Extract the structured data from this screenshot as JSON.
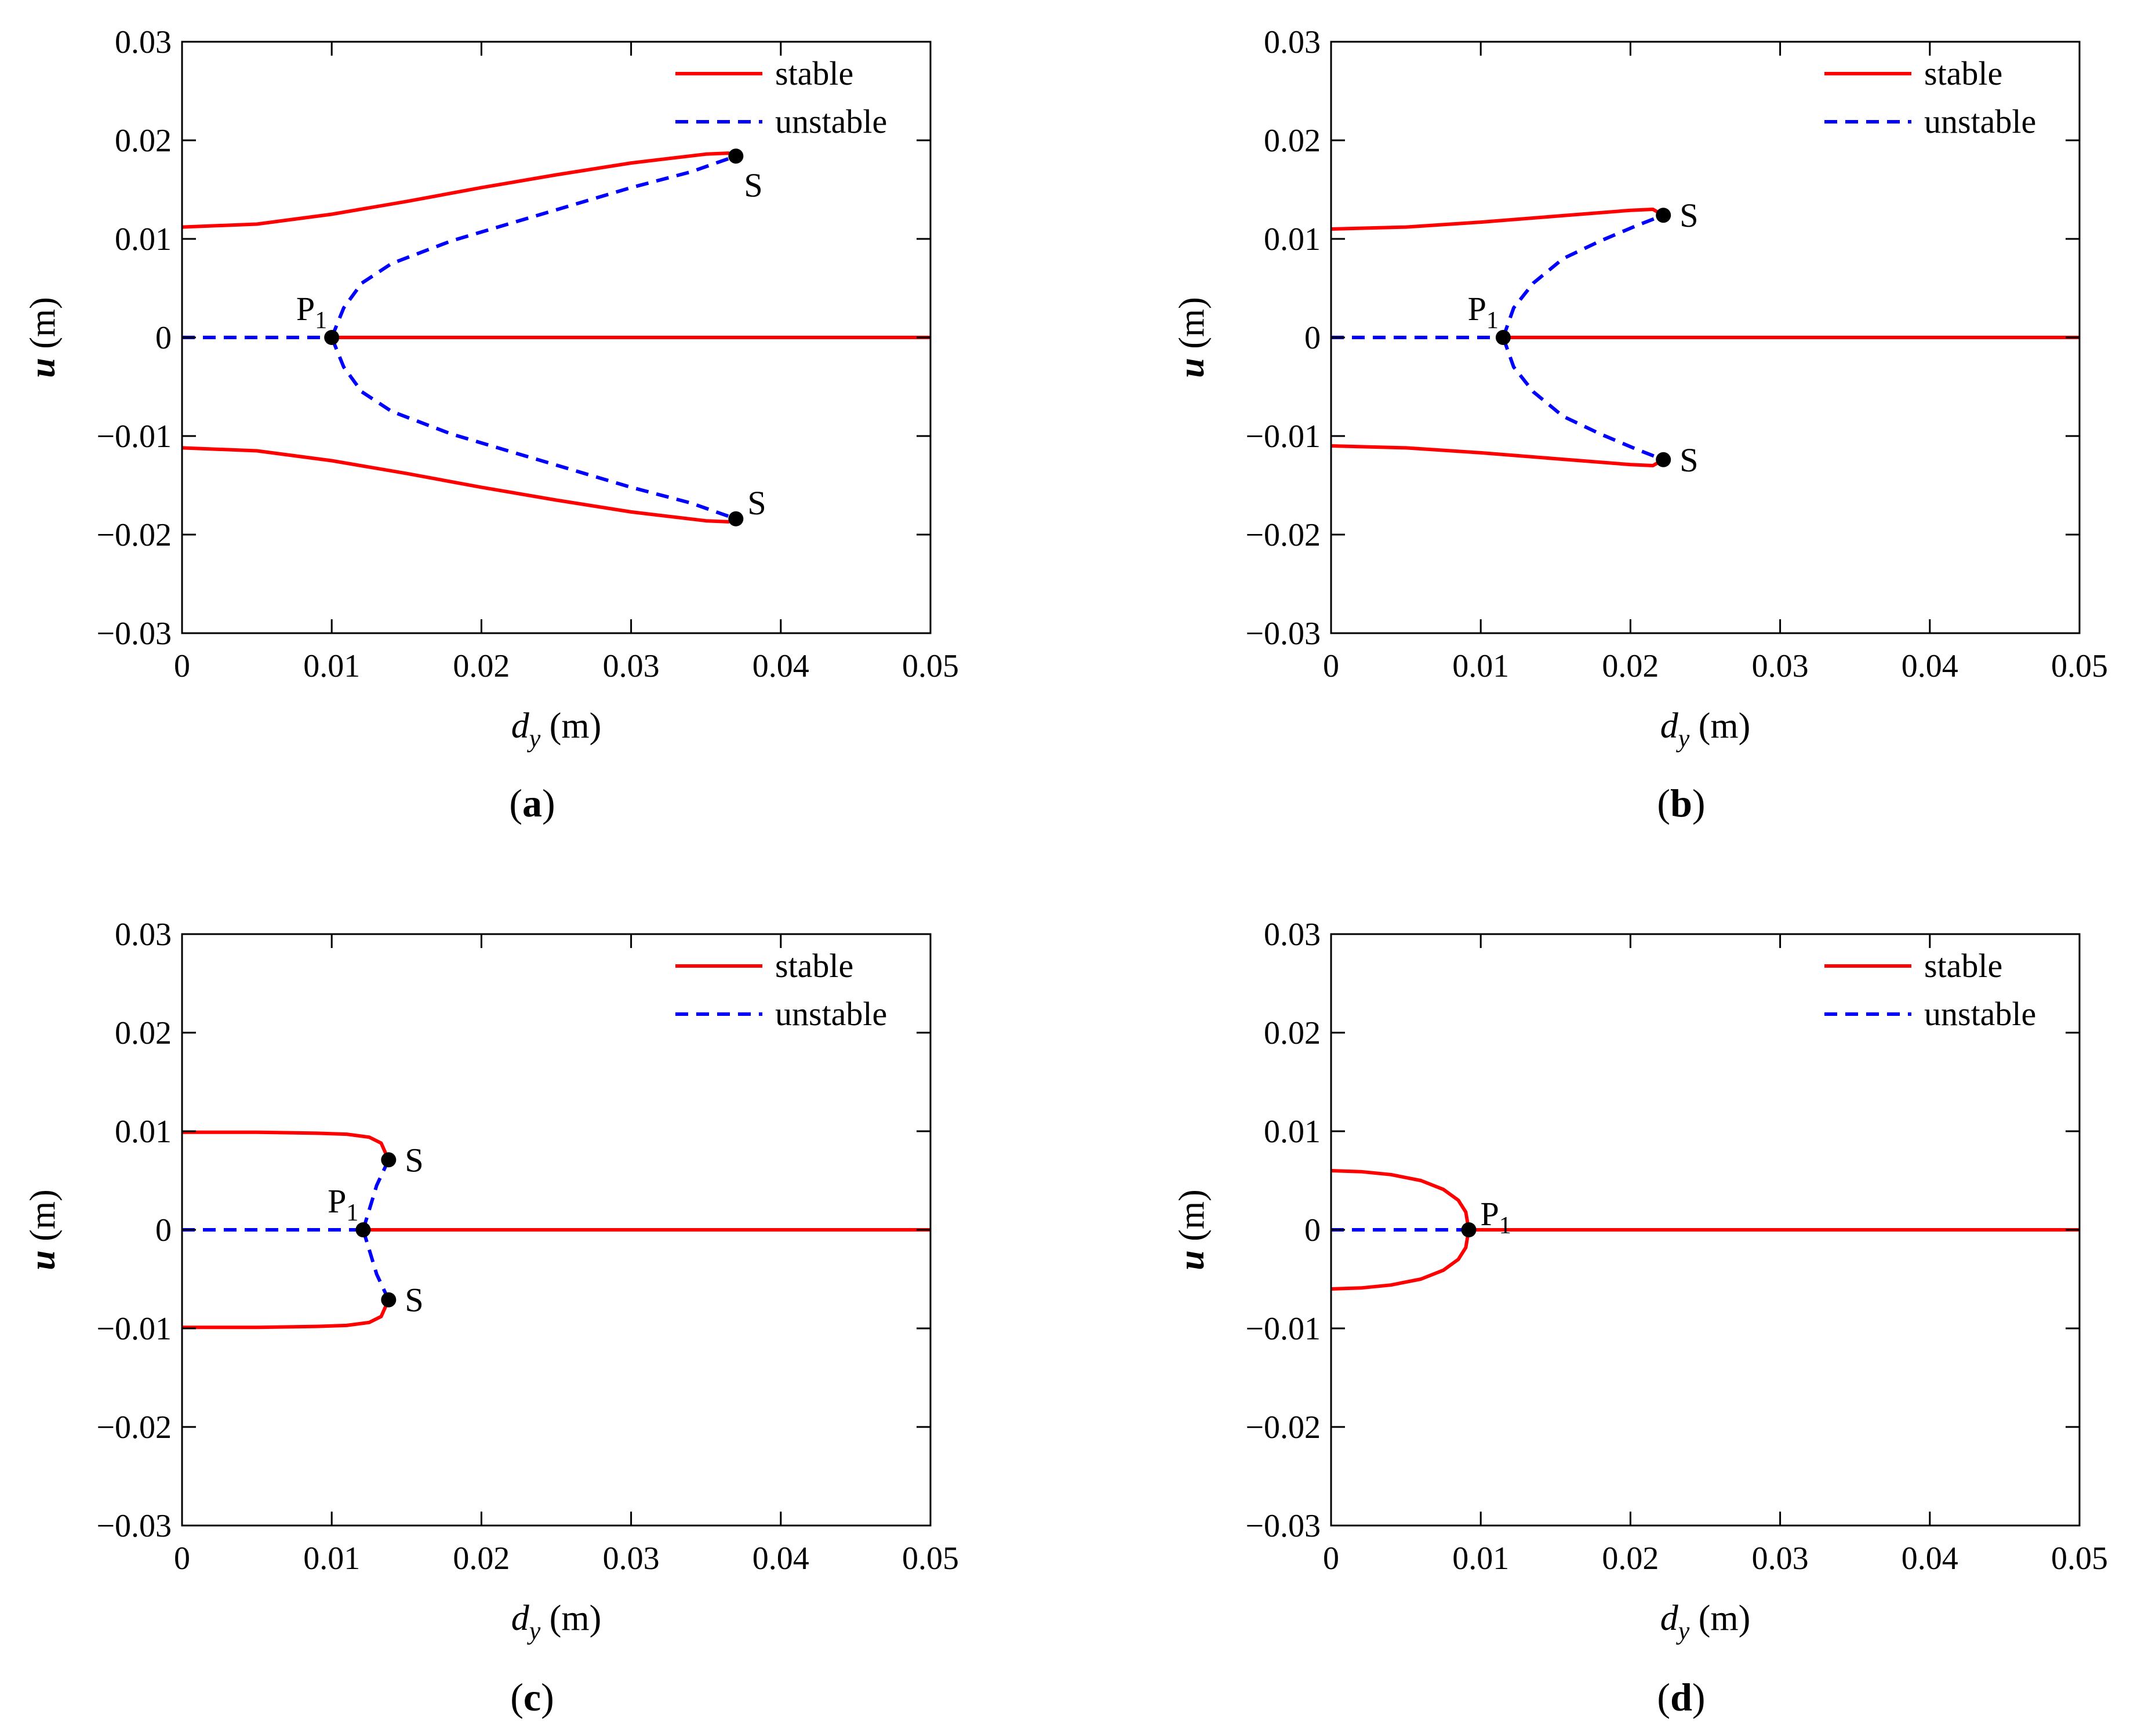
{
  "colors": {
    "stable": "#ff0000",
    "unstable": "#0000ff",
    "point": "#000000",
    "axis": "#000000"
  },
  "chart_data": [
    {
      "panel": "a",
      "caption_letter": "a",
      "type": "line",
      "xlabel_main": "d",
      "xlabel_sub": "y",
      "xlabel_unit": "(m)",
      "ylabel_main": "u",
      "ylabel_unit": "(m)",
      "xlim": [
        0,
        0.05
      ],
      "ylim": [
        -0.03,
        0.03
      ],
      "x_ticks": [
        0,
        0.01,
        0.02,
        0.03,
        0.04,
        0.05
      ],
      "x_tick_labels": [
        "0",
        "0.01",
        "0.02",
        "0.03",
        "0.04",
        "0.05"
      ],
      "y_ticks": [
        0.03,
        0.02,
        0.01,
        0,
        -0.01,
        -0.02,
        -0.03
      ],
      "y_tick_labels": [
        "0.03",
        "0.02",
        "0.01",
        "0",
        "−0.01",
        "−0.02",
        "−0.03"
      ],
      "legend": {
        "placement": "top-right",
        "entries": [
          "stable",
          "unstable"
        ]
      },
      "series": [
        {
          "name": "stable",
          "style": "solid",
          "points": [
            [
              0,
              0.0112
            ],
            [
              0.005,
              0.0115
            ],
            [
              0.01,
              0.0125
            ],
            [
              0.015,
              0.0138
            ],
            [
              0.02,
              0.0152
            ],
            [
              0.025,
              0.0165
            ],
            [
              0.03,
              0.0177
            ],
            [
              0.035,
              0.0186
            ],
            [
              0.0365,
              0.0187
            ],
            [
              0.037,
              0.0184
            ]
          ]
        },
        {
          "name": "stable",
          "style": "solid",
          "points": [
            [
              0,
              -0.0112
            ],
            [
              0.005,
              -0.0115
            ],
            [
              0.01,
              -0.0125
            ],
            [
              0.015,
              -0.0138
            ],
            [
              0.02,
              -0.0152
            ],
            [
              0.025,
              -0.0165
            ],
            [
              0.03,
              -0.0177
            ],
            [
              0.035,
              -0.0186
            ],
            [
              0.0365,
              -0.0187
            ],
            [
              0.037,
              -0.0184
            ]
          ]
        },
        {
          "name": "stable",
          "style": "solid",
          "points": [
            [
              0.01,
              0
            ],
            [
              0.05,
              0
            ]
          ]
        },
        {
          "name": "unstable",
          "style": "dashed",
          "points": [
            [
              0,
              0
            ],
            [
              0.01,
              0
            ]
          ]
        },
        {
          "name": "unstable",
          "style": "dashed",
          "points": [
            [
              0.01,
              0
            ],
            [
              0.0108,
              0.003
            ],
            [
              0.012,
              0.0055
            ],
            [
              0.014,
              0.0075
            ],
            [
              0.018,
              0.0098
            ],
            [
              0.024,
              0.0125
            ],
            [
              0.03,
              0.0152
            ],
            [
              0.034,
              0.0168
            ],
            [
              0.037,
              0.0184
            ]
          ]
        },
        {
          "name": "unstable",
          "style": "dashed",
          "points": [
            [
              0.01,
              0
            ],
            [
              0.0108,
              -0.003
            ],
            [
              0.012,
              -0.0055
            ],
            [
              0.014,
              -0.0075
            ],
            [
              0.018,
              -0.0098
            ],
            [
              0.024,
              -0.0125
            ],
            [
              0.03,
              -0.0152
            ],
            [
              0.034,
              -0.0168
            ],
            [
              0.037,
              -0.0184
            ]
          ]
        }
      ],
      "markers": [
        {
          "label": "S",
          "x": 0.037,
          "y": 0.0184,
          "label_anchor": "below-right"
        },
        {
          "label": "S",
          "x": 0.037,
          "y": -0.0184,
          "label_anchor": "above-right"
        },
        {
          "label": "P",
          "label_sub": "1",
          "x": 0.01,
          "y": 0,
          "label_anchor": "above-left"
        }
      ]
    },
    {
      "panel": "b",
      "caption_letter": "b",
      "type": "line",
      "xlabel_main": "d",
      "xlabel_sub": "y",
      "xlabel_unit": "(m)",
      "ylabel_main": "u",
      "ylabel_unit": "(m)",
      "xlim": [
        0,
        0.05
      ],
      "ylim": [
        -0.03,
        0.03
      ],
      "x_ticks": [
        0,
        0.01,
        0.02,
        0.03,
        0.04,
        0.05
      ],
      "x_tick_labels": [
        "0",
        "0.01",
        "0.02",
        "0.03",
        "0.04",
        "0.05"
      ],
      "y_ticks": [
        0.03,
        0.02,
        0.01,
        0,
        -0.01,
        -0.02,
        -0.03
      ],
      "y_tick_labels": [
        "0.03",
        "0.02",
        "0.01",
        "0",
        "−0.01",
        "−0.02",
        "−0.03"
      ],
      "legend": {
        "placement": "top-right",
        "entries": [
          "stable",
          "unstable"
        ]
      },
      "series": [
        {
          "name": "stable",
          "style": "solid",
          "points": [
            [
              0,
              0.011
            ],
            [
              0.005,
              0.0112
            ],
            [
              0.01,
              0.0117
            ],
            [
              0.015,
              0.0123
            ],
            [
              0.02,
              0.0129
            ],
            [
              0.0215,
              0.013
            ],
            [
              0.0222,
              0.0124
            ]
          ]
        },
        {
          "name": "stable",
          "style": "solid",
          "points": [
            [
              0,
              -0.011
            ],
            [
              0.005,
              -0.0112
            ],
            [
              0.01,
              -0.0117
            ],
            [
              0.015,
              -0.0123
            ],
            [
              0.02,
              -0.0129
            ],
            [
              0.0215,
              -0.013
            ],
            [
              0.0222,
              -0.0124
            ]
          ]
        },
        {
          "name": "stable",
          "style": "solid",
          "points": [
            [
              0.0115,
              0
            ],
            [
              0.05,
              0
            ]
          ]
        },
        {
          "name": "unstable",
          "style": "dashed",
          "points": [
            [
              0,
              0
            ],
            [
              0.0115,
              0
            ]
          ]
        },
        {
          "name": "unstable",
          "style": "dashed",
          "points": [
            [
              0.0115,
              0
            ],
            [
              0.0122,
              0.003
            ],
            [
              0.0135,
              0.0055
            ],
            [
              0.0155,
              0.008
            ],
            [
              0.018,
              0.0098
            ],
            [
              0.0205,
              0.0114
            ],
            [
              0.0222,
              0.0124
            ]
          ]
        },
        {
          "name": "unstable",
          "style": "dashed",
          "points": [
            [
              0.0115,
              0
            ],
            [
              0.0122,
              -0.003
            ],
            [
              0.0135,
              -0.0055
            ],
            [
              0.0155,
              -0.008
            ],
            [
              0.018,
              -0.0098
            ],
            [
              0.0205,
              -0.0114
            ],
            [
              0.0222,
              -0.0124
            ]
          ]
        }
      ],
      "markers": [
        {
          "label": "S",
          "x": 0.0222,
          "y": 0.0124,
          "label_anchor": "right"
        },
        {
          "label": "S",
          "x": 0.0222,
          "y": -0.0124,
          "label_anchor": "right"
        },
        {
          "label": "P",
          "label_sub": "1",
          "x": 0.0115,
          "y": 0,
          "label_anchor": "above-left"
        }
      ]
    },
    {
      "panel": "c",
      "caption_letter": "c",
      "type": "line",
      "xlabel_main": "d",
      "xlabel_sub": "y",
      "xlabel_unit": "(m)",
      "ylabel_main": "u",
      "ylabel_unit": "(m)",
      "xlim": [
        0,
        0.05
      ],
      "ylim": [
        -0.03,
        0.03
      ],
      "x_ticks": [
        0,
        0.01,
        0.02,
        0.03,
        0.04,
        0.05
      ],
      "x_tick_labels": [
        "0",
        "0.01",
        "0.02",
        "0.03",
        "0.04",
        "0.05"
      ],
      "y_ticks": [
        0.03,
        0.02,
        0.01,
        0,
        -0.01,
        -0.02,
        -0.03
      ],
      "y_tick_labels": [
        "0.03",
        "0.02",
        "0.01",
        "0",
        "−0.01",
        "−0.02",
        "−0.03"
      ],
      "legend": {
        "placement": "top-right",
        "entries": [
          "stable",
          "unstable"
        ]
      },
      "series": [
        {
          "name": "stable",
          "style": "solid",
          "points": [
            [
              0,
              0.0099
            ],
            [
              0.005,
              0.0099
            ],
            [
              0.009,
              0.0098
            ],
            [
              0.011,
              0.0097
            ],
            [
              0.0125,
              0.0094
            ],
            [
              0.0133,
              0.0088
            ],
            [
              0.0138,
              0.0071
            ]
          ]
        },
        {
          "name": "stable",
          "style": "solid",
          "points": [
            [
              0,
              -0.0099
            ],
            [
              0.005,
              -0.0099
            ],
            [
              0.009,
              -0.0098
            ],
            [
              0.011,
              -0.0097
            ],
            [
              0.0125,
              -0.0094
            ],
            [
              0.0133,
              -0.0088
            ],
            [
              0.0138,
              -0.0071
            ]
          ]
        },
        {
          "name": "stable",
          "style": "solid",
          "points": [
            [
              0.0121,
              0
            ],
            [
              0.05,
              0
            ]
          ]
        },
        {
          "name": "unstable",
          "style": "dashed",
          "points": [
            [
              0,
              0
            ],
            [
              0.0121,
              0
            ]
          ]
        },
        {
          "name": "unstable",
          "style": "dashed",
          "points": [
            [
              0.0121,
              0
            ],
            [
              0.0125,
              0.002
            ],
            [
              0.013,
              0.0045
            ],
            [
              0.0138,
              0.0071
            ]
          ]
        },
        {
          "name": "unstable",
          "style": "dashed",
          "points": [
            [
              0.0121,
              0
            ],
            [
              0.0125,
              -0.002
            ],
            [
              0.013,
              -0.0045
            ],
            [
              0.0138,
              -0.0071
            ]
          ]
        }
      ],
      "markers": [
        {
          "label": "S",
          "x": 0.0138,
          "y": 0.0071,
          "label_anchor": "right"
        },
        {
          "label": "S",
          "x": 0.0138,
          "y": -0.0071,
          "label_anchor": "right"
        },
        {
          "label": "P",
          "label_sub": "1",
          "x": 0.0121,
          "y": 0,
          "label_anchor": "above-left"
        }
      ]
    },
    {
      "panel": "d",
      "caption_letter": "d",
      "type": "line",
      "xlabel_main": "d",
      "xlabel_sub": "y",
      "xlabel_unit": "(m)",
      "ylabel_main": "u",
      "ylabel_unit": "(m)",
      "xlim": [
        0,
        0.05
      ],
      "ylim": [
        -0.03,
        0.03
      ],
      "x_ticks": [
        0,
        0.01,
        0.02,
        0.03,
        0.04,
        0.05
      ],
      "x_tick_labels": [
        "0",
        "0.01",
        "0.02",
        "0.03",
        "0.04",
        "0.05"
      ],
      "y_ticks": [
        0.03,
        0.02,
        0.01,
        0,
        -0.01,
        -0.02,
        -0.03
      ],
      "y_tick_labels": [
        "0.03",
        "0.02",
        "0.01",
        "0",
        "−0.01",
        "−0.02",
        "−0.03"
      ],
      "legend": {
        "placement": "top-right",
        "entries": [
          "stable",
          "unstable"
        ]
      },
      "series": [
        {
          "name": "stable",
          "style": "solid",
          "points": [
            [
              0,
              0.006
            ],
            [
              0.002,
              0.0059
            ],
            [
              0.004,
              0.0056
            ],
            [
              0.006,
              0.005
            ],
            [
              0.0075,
              0.0041
            ],
            [
              0.0085,
              0.003
            ],
            [
              0.009,
              0.0018
            ],
            [
              0.0092,
              0
            ]
          ]
        },
        {
          "name": "stable",
          "style": "solid",
          "points": [
            [
              0,
              -0.006
            ],
            [
              0.002,
              -0.0059
            ],
            [
              0.004,
              -0.0056
            ],
            [
              0.006,
              -0.005
            ],
            [
              0.0075,
              -0.0041
            ],
            [
              0.0085,
              -0.003
            ],
            [
              0.009,
              -0.0018
            ],
            [
              0.0092,
              0
            ]
          ]
        },
        {
          "name": "stable",
          "style": "solid",
          "points": [
            [
              0.0092,
              0
            ],
            [
              0.05,
              0
            ]
          ]
        },
        {
          "name": "unstable",
          "style": "dashed",
          "points": [
            [
              0,
              0
            ],
            [
              0.0092,
              0
            ]
          ]
        }
      ],
      "markers": [
        {
          "label": "P",
          "label_sub": "1",
          "x": 0.0092,
          "y": 0,
          "label_anchor": "above-right"
        }
      ]
    }
  ]
}
